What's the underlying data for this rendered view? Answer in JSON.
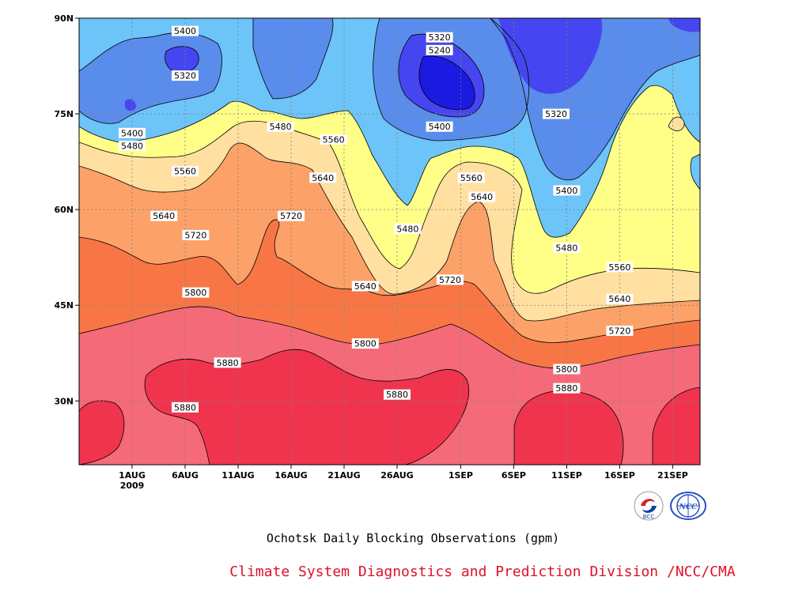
{
  "chart_data": {
    "type": "heatmap",
    "title": "Ochotsk Daily Blocking Observations (gpm)",
    "credit": "Climate System Diagnostics and Prediction Division /NCC/CMA",
    "x_tick_labels": [
      "1AUG",
      "6AUG",
      "11AUG",
      "16AUG",
      "21AUG",
      "26AUG",
      "1SEP",
      "6SEP",
      "11SEP",
      "16SEP",
      "21SEP"
    ],
    "x_year_label": "2009",
    "y_tick_labels": [
      "90N",
      "75N",
      "60N",
      "45N",
      "30N"
    ],
    "ylim": [
      20,
      90
    ],
    "grid": true,
    "contour_levels": [
      5240,
      5320,
      5400,
      5480,
      5560,
      5640,
      5720,
      5800,
      5880
    ],
    "band_colors": {
      "lt5240": "#1a1ae0",
      "5240_5320": "#4646f0",
      "5320_5400": "#5a8ceb",
      "5400_5480": "#6cc4f8",
      "5480_5560": "#ffff88",
      "5560_5640": "#ffe0a0",
      "5640_5720": "#fca168",
      "5720_5800": "#f87646",
      "5800_5880": "#f56a78",
      "gt5880": "#f0344e"
    },
    "contour_labels": [
      {
        "text": "5400",
        "date": "6AUG",
        "lat": 88
      },
      {
        "text": "5320",
        "date": "6AUG",
        "lat": 81
      },
      {
        "text": "5400",
        "date": "1AUG",
        "lat": 72
      },
      {
        "text": "5480",
        "date": "1AUG",
        "lat": 70
      },
      {
        "text": "5560",
        "date": "6AUG",
        "lat": 66
      },
      {
        "text": "5640",
        "date": "4AUG",
        "lat": 59
      },
      {
        "text": "5720",
        "date": "7AUG",
        "lat": 56
      },
      {
        "text": "5800",
        "date": "7AUG",
        "lat": 47
      },
      {
        "text": "5480",
        "date": "15AUG",
        "lat": 73
      },
      {
        "text": "5560",
        "date": "20AUG",
        "lat": 71
      },
      {
        "text": "5640",
        "date": "19AUG",
        "lat": 65
      },
      {
        "text": "5720",
        "date": "16AUG",
        "lat": 59
      },
      {
        "text": "5880",
        "date": "10AUG",
        "lat": 36
      },
      {
        "text": "5880",
        "date": "6AUG",
        "lat": 29
      },
      {
        "text": "5640",
        "date": "23AUG",
        "lat": 48
      },
      {
        "text": "5800",
        "date": "23AUG",
        "lat": 39
      },
      {
        "text": "5880",
        "date": "26AUG",
        "lat": 31
      },
      {
        "text": "5480",
        "date": "27AUG",
        "lat": 57
      },
      {
        "text": "5320",
        "date": "30AUG",
        "lat": 87
      },
      {
        "text": "5240",
        "date": "30AUG",
        "lat": 85
      },
      {
        "text": "5400",
        "date": "30AUG",
        "lat": 73
      },
      {
        "text": "5560",
        "date": "2SEP",
        "lat": 65
      },
      {
        "text": "5640",
        "date": "3SEP",
        "lat": 62
      },
      {
        "text": "5720",
        "date": "31AUG",
        "lat": 49
      },
      {
        "text": "5320",
        "date": "10SEP",
        "lat": 75
      },
      {
        "text": "5400",
        "date": "11SEP",
        "lat": 63
      },
      {
        "text": "5480",
        "date": "11SEP",
        "lat": 54
      },
      {
        "text": "5800",
        "date": "11SEP",
        "lat": 35
      },
      {
        "text": "5880",
        "date": "11SEP",
        "lat": 32
      },
      {
        "text": "5560",
        "date": "16SEP",
        "lat": 51
      },
      {
        "text": "5640",
        "date": "16SEP",
        "lat": 46
      },
      {
        "text": "5720",
        "date": "16SEP",
        "lat": 41
      }
    ]
  },
  "logos": [
    {
      "icon": "bcc-logo-icon",
      "text": "BCC"
    },
    {
      "icon": "ncc-logo-icon",
      "text": "NCC"
    }
  ]
}
